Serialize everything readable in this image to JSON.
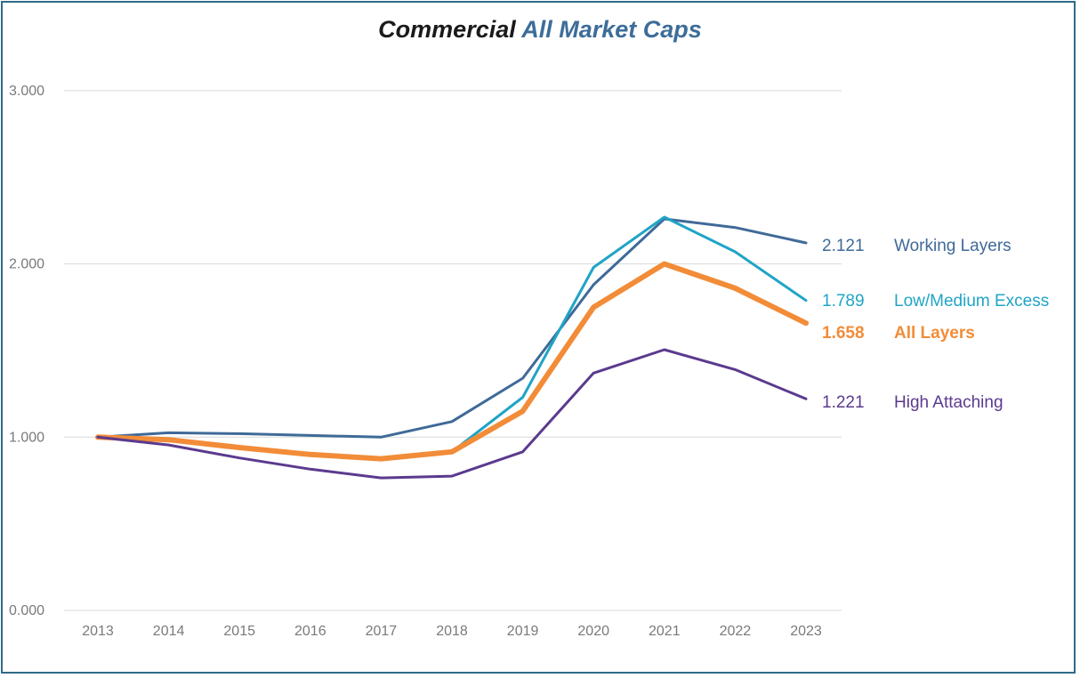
{
  "title_part1": "Commercial",
  "title_part2": "All Market Caps",
  "colors": {
    "title_part2": "#3d6d99",
    "frame": "#2f6b87",
    "grid": "#d9d9d9"
  },
  "chart_data": {
    "type": "line",
    "title": "Commercial All Market Caps",
    "x": [
      "2013",
      "2014",
      "2015",
      "2016",
      "2017",
      "2018",
      "2019",
      "2020",
      "2021",
      "2022",
      "2023"
    ],
    "ylim": [
      0,
      3
    ],
    "y_ticks": [
      "0.000",
      "1.000",
      "2.000",
      "3.000"
    ],
    "grid": "horizontal",
    "legend": "end-of-line labels",
    "series": [
      {
        "name": "Working Layers",
        "end_label": "2.121",
        "color": "#3f6a98",
        "width": 3,
        "bold": false,
        "values": [
          1.0,
          1.025,
          1.02,
          1.01,
          1.0,
          1.09,
          1.34,
          1.88,
          2.26,
          2.21,
          2.121
        ]
      },
      {
        "name": "Low/Medium Excess",
        "end_label": "1.789",
        "color": "#20a4c6",
        "width": 3,
        "bold": false,
        "values": [
          1.0,
          0.98,
          0.94,
          0.9,
          0.875,
          0.915,
          1.23,
          1.98,
          2.27,
          2.07,
          1.789
        ]
      },
      {
        "name": "All Layers",
        "end_label": "1.658",
        "color": "#f28c38",
        "width": 6,
        "bold": true,
        "values": [
          1.0,
          0.985,
          0.94,
          0.9,
          0.875,
          0.915,
          1.15,
          1.75,
          2.0,
          1.86,
          1.658
        ]
      },
      {
        "name": "High Attaching",
        "end_label": "1.221",
        "color": "#5b3a8e",
        "width": 3,
        "bold": false,
        "values": [
          1.0,
          0.955,
          0.88,
          0.815,
          0.765,
          0.775,
          0.915,
          1.37,
          1.505,
          1.39,
          1.221
        ]
      }
    ]
  }
}
